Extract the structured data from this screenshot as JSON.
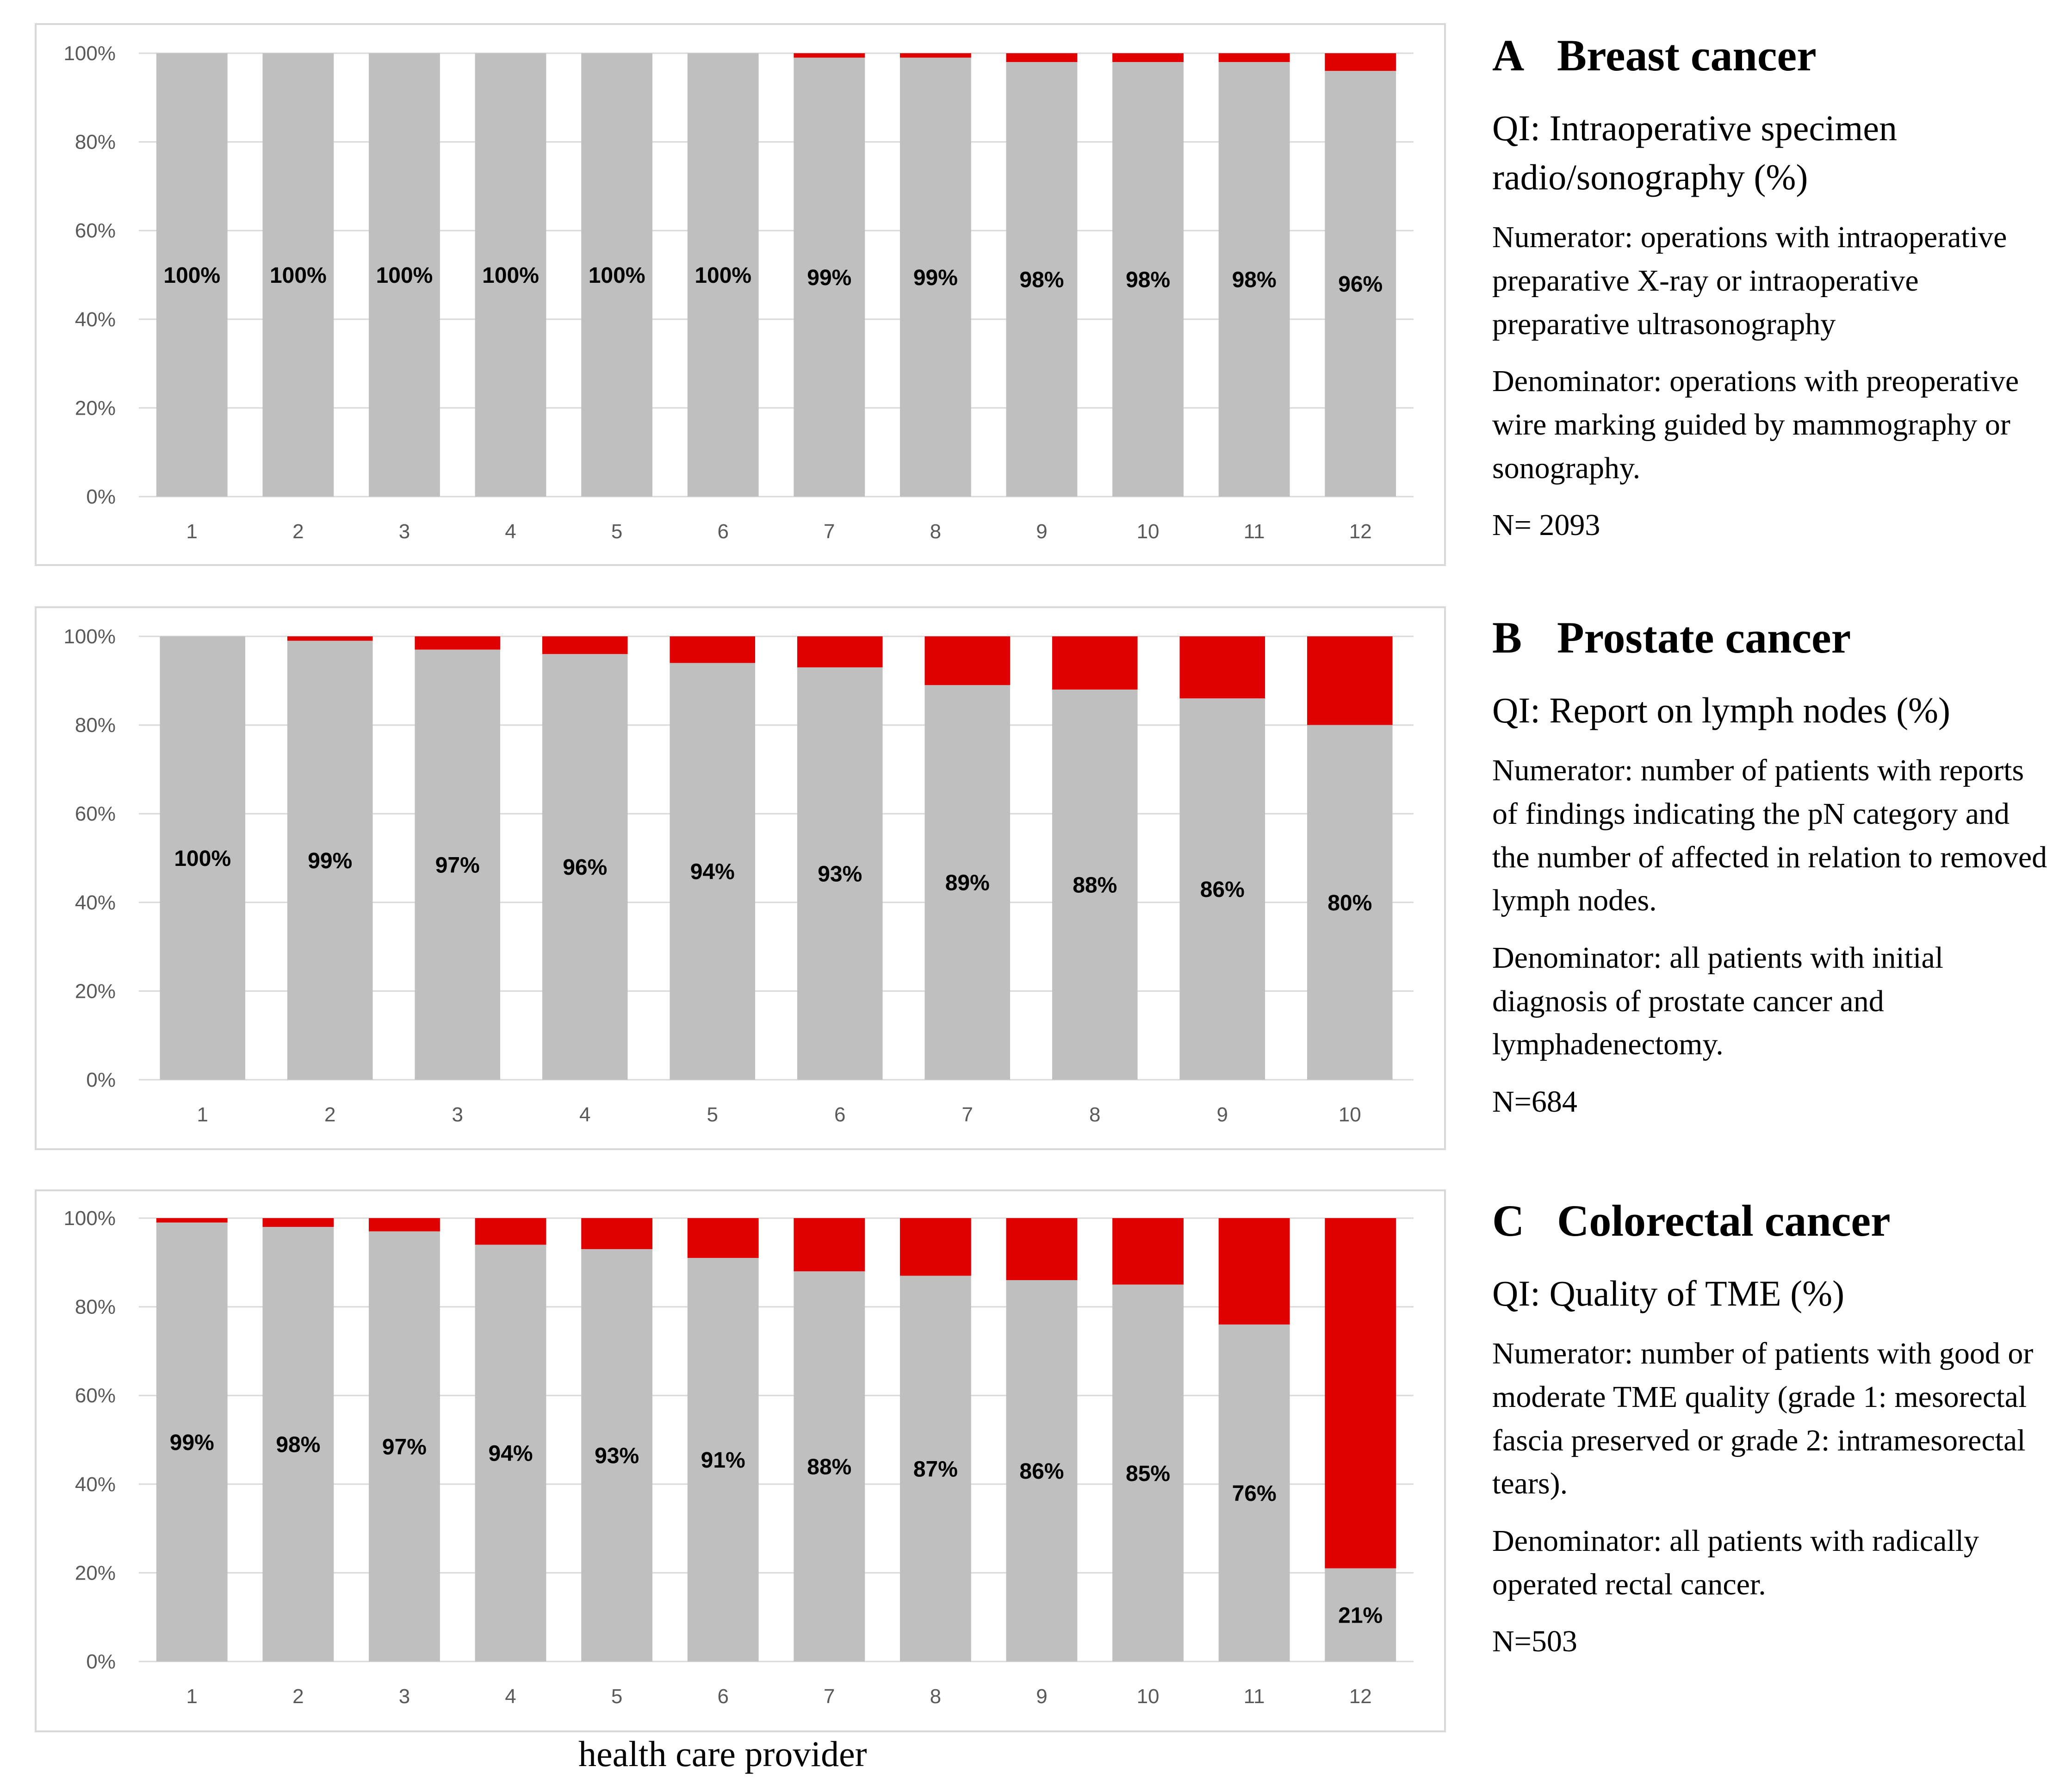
{
  "colors": {
    "bar": "#bfbfbf",
    "remainder": "#e00000",
    "grid": "#d9d9d9"
  },
  "y_ticks": [
    "0%",
    "20%",
    "40%",
    "60%",
    "80%",
    "100%"
  ],
  "xlabel": "health care provider",
  "chart_data": [
    {
      "type": "bar",
      "stacked": true,
      "panel": "A",
      "title": "Breast cancer",
      "categories": [
        "1",
        "2",
        "3",
        "4",
        "5",
        "6",
        "7",
        "8",
        "9",
        "10",
        "11",
        "12"
      ],
      "values": [
        100,
        100,
        100,
        100,
        100,
        100,
        99,
        99,
        98,
        98,
        98,
        96
      ],
      "labels": [
        "100%",
        "100%",
        "100%",
        "100%",
        "100%",
        "100%",
        "99%",
        "99%",
        "98%",
        "98%",
        "98%",
        "96%"
      ],
      "ylim": [
        0,
        100
      ],
      "qi": "QI: Intraoperative specimen radio/sonography (%)",
      "numerator": "Numerator: operations with intraoperative preparative X-ray or intraoperative preparative ultrasonography",
      "denominator": "Denominator: operations with preoperative wire marking guided by mammography or sonography.",
      "n": "N= 2093"
    },
    {
      "type": "bar",
      "stacked": true,
      "panel": "B",
      "title": "Prostate cancer",
      "categories": [
        "1",
        "2",
        "3",
        "4",
        "5",
        "6",
        "7",
        "8",
        "9",
        "10"
      ],
      "values": [
        100,
        99,
        97,
        96,
        94,
        93,
        89,
        88,
        86,
        80
      ],
      "labels": [
        "100%",
        "99%",
        "97%",
        "96%",
        "94%",
        "93%",
        "89%",
        "88%",
        "86%",
        "80%"
      ],
      "ylim": [
        0,
        100
      ],
      "qi": "QI: Report on lymph nodes (%)",
      "numerator": "Numerator: number of patients with reports of findings indicating the pN category and the number of affected in relation to removed lymph nodes.",
      "denominator": "Denominator: all patients with initial diagnosis of prostate cancer and lymphadenectomy.",
      "n": "N=684"
    },
    {
      "type": "bar",
      "stacked": true,
      "panel": "C",
      "title": "Colorectal cancer",
      "categories": [
        "1",
        "2",
        "3",
        "4",
        "5",
        "6",
        "7",
        "8",
        "9",
        "10",
        "11",
        "12"
      ],
      "values": [
        99,
        98,
        97,
        94,
        93,
        91,
        88,
        87,
        86,
        85,
        76,
        21
      ],
      "labels": [
        "99%",
        "98%",
        "97%",
        "94%",
        "93%",
        "91%",
        "88%",
        "87%",
        "86%",
        "85%",
        "76%",
        "21%"
      ],
      "ylim": [
        0,
        100
      ],
      "qi": "QI: Quality of TME (%)",
      "numerator": "Numerator: number of patients with good or moderate TME quality (grade 1: mesorectal fascia preserved or grade 2: intramesorectal tears).",
      "denominator": "Denominator: all patients with radically operated rectal cancer.",
      "n": "N=503"
    }
  ]
}
